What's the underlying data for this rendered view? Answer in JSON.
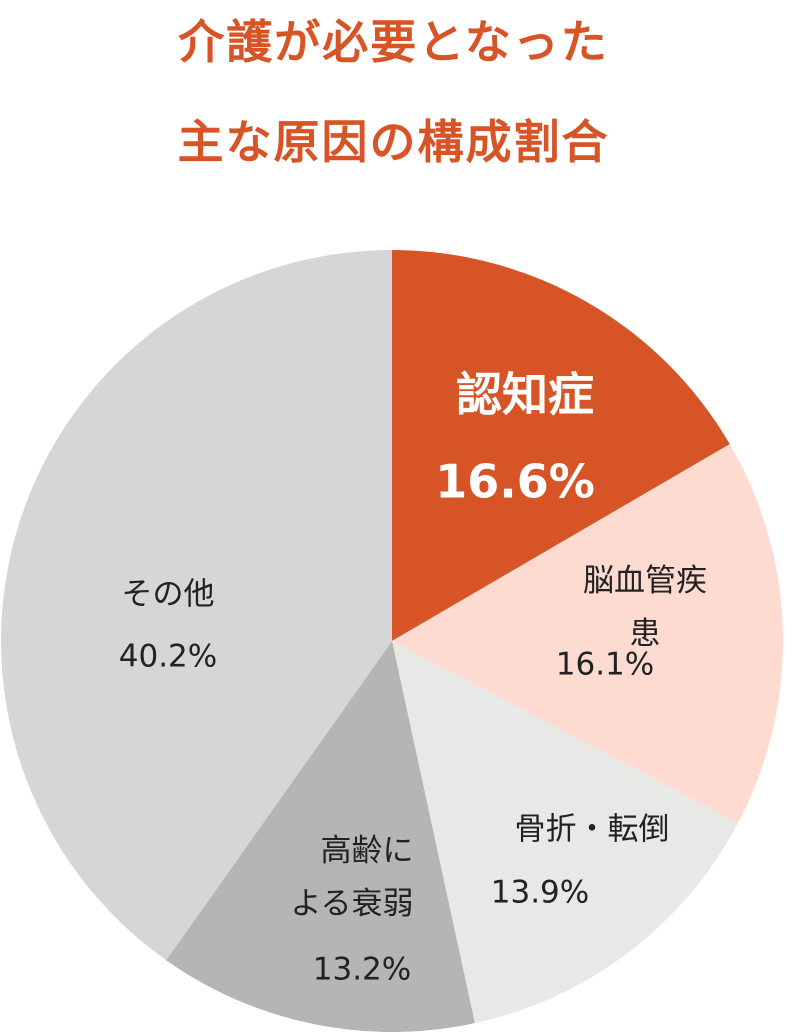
{
  "chart_data": {
    "type": "pie",
    "title": "介護が必要となった\n主な原因の構成割合",
    "categories": [
      "認知症",
      "脳血管疾患",
      "骨折・転倒",
      "高齢に\nよる衰弱",
      "その他"
    ],
    "values": [
      16.6,
      16.1,
      13.9,
      13.2,
      40.2
    ],
    "value_labels": [
      "16.6%",
      "16.1%",
      "13.9%",
      "13.2%",
      "40.2%"
    ],
    "colors": [
      "#d75427",
      "#fddbd1",
      "#e8e8e6",
      "#b5b5b5",
      "#d6d6d6"
    ]
  }
}
